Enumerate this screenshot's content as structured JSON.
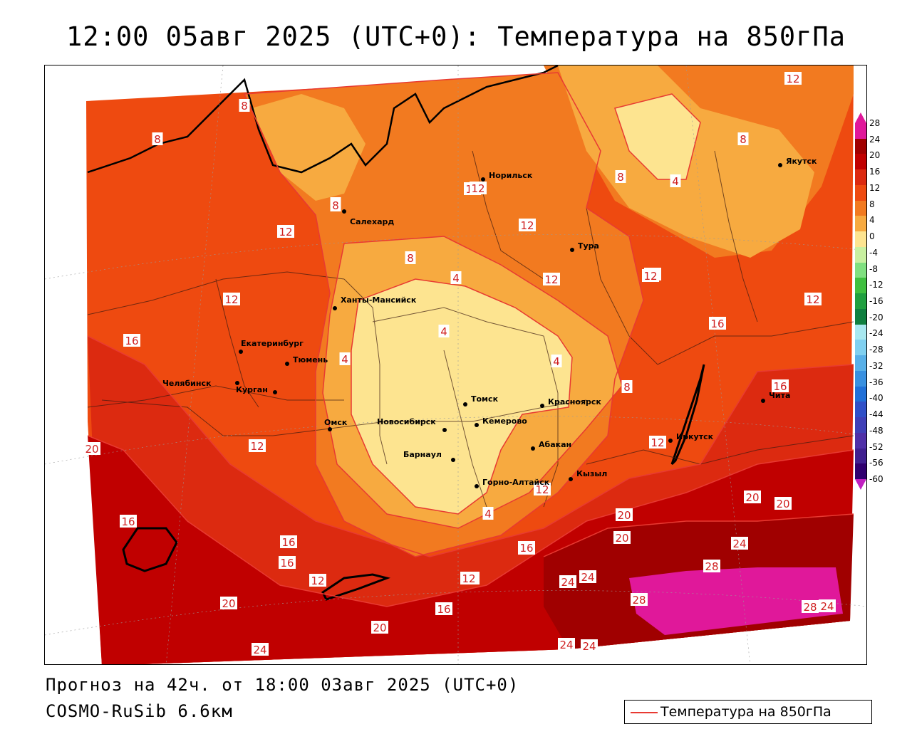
{
  "title": "12:00 05авг 2025 (UTC+0): Температура на 850гПа",
  "footer": {
    "forecast": "Прогноз на 42ч. от 18:00 03авг 2025 (UTC+0)",
    "model": "COSMO-RuSib 6.6км"
  },
  "legend": {
    "label": "Температура на 850гПа",
    "line_color": "#e83a32"
  },
  "scale": {
    "labels": [
      "28",
      "24",
      "20",
      "16",
      "12",
      "8",
      "4",
      "0",
      "-4",
      "-8",
      "-12",
      "-16",
      "-20",
      "-24",
      "-28",
      "-32",
      "-36",
      "-40",
      "-44",
      "-48",
      "-52",
      "-56",
      "-60"
    ],
    "colors": [
      "#e0189a",
      "#a00000",
      "#c00000",
      "#dc2a10",
      "#ee4a10",
      "#f27a20",
      "#f7aa40",
      "#fde490",
      "#c8f0a0",
      "#80e080",
      "#40c040",
      "#20a040",
      "#108040",
      "#a8e8f0",
      "#80d0f0",
      "#58b0e8",
      "#3890e0",
      "#2070d8",
      "#3050c8",
      "#4040b8",
      "#5030a8",
      "#402090",
      "#300070"
    ]
  },
  "cities": [
    {
      "name": "Салехард"
    },
    {
      "name": "Норильск"
    },
    {
      "name": "Якутск"
    },
    {
      "name": "Тура"
    },
    {
      "name": "Ханты-Мансийск"
    },
    {
      "name": "Екатеринбург"
    },
    {
      "name": "Тюмень"
    },
    {
      "name": "Челябинск"
    },
    {
      "name": "Курган"
    },
    {
      "name": "Омск"
    },
    {
      "name": "Новосибирск"
    },
    {
      "name": "Томск"
    },
    {
      "name": "Кемерово"
    },
    {
      "name": "Красноярск"
    },
    {
      "name": "Барнаул"
    },
    {
      "name": "Абакан"
    },
    {
      "name": "Горно-Алтайск"
    },
    {
      "name": "Кызыл"
    },
    {
      "name": "Иркутск"
    },
    {
      "name": "Чита"
    }
  ],
  "isotherm_labels": [
    "8",
    "8",
    "12",
    "12",
    "8",
    "12",
    "12",
    "12",
    "8",
    "12",
    "12",
    "4",
    "8",
    "4",
    "8",
    "12",
    "4",
    "4",
    "12",
    "12",
    "16",
    "16",
    "12",
    "16",
    "20",
    "20",
    "16",
    "16",
    "12",
    "20",
    "16",
    "16",
    "24",
    "20",
    "24",
    "28",
    "20",
    "28",
    "24",
    "24",
    "12",
    "16",
    "20",
    "24",
    "24",
    "20",
    "28",
    "24",
    "8",
    "12",
    "16",
    "4",
    "12",
    "4",
    "8",
    "12"
  ]
}
